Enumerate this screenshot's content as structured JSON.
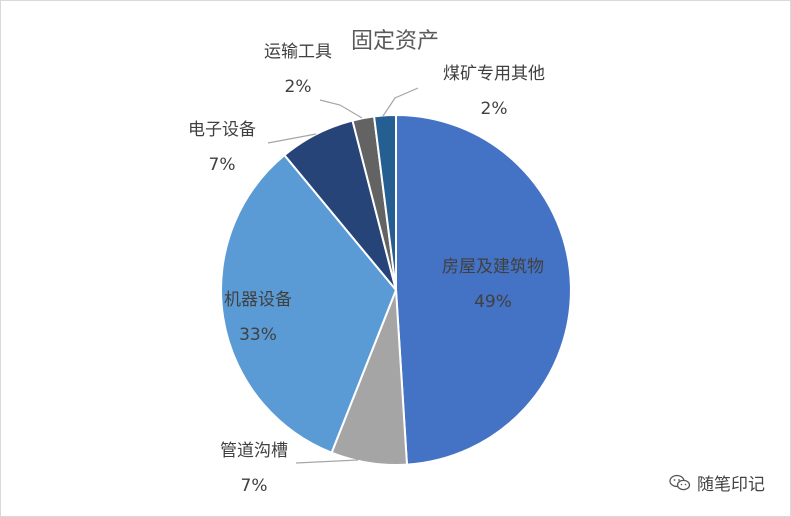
{
  "chart_data": {
    "type": "pie",
    "title": "固定资产",
    "slices": [
      {
        "label": "房屋及建筑物",
        "value": 49,
        "pct": "49%",
        "color": "#4472C4"
      },
      {
        "label": "管道沟槽",
        "value": 7,
        "pct": "7%",
        "color": "#A5A5A5"
      },
      {
        "label": "机器设备",
        "value": 33,
        "pct": "33%",
        "color": "#5B9BD5"
      },
      {
        "label": "电子设备",
        "value": 7,
        "pct": "7%",
        "color": "#264478"
      },
      {
        "label": "运输工具",
        "value": 2,
        "pct": "2%",
        "color": "#636363"
      },
      {
        "label": "煤矿专用其他",
        "value": 2,
        "pct": "2%",
        "color": "#255E91"
      }
    ]
  },
  "watermark": {
    "text": "随笔印记",
    "icon": "wechat-icon"
  }
}
